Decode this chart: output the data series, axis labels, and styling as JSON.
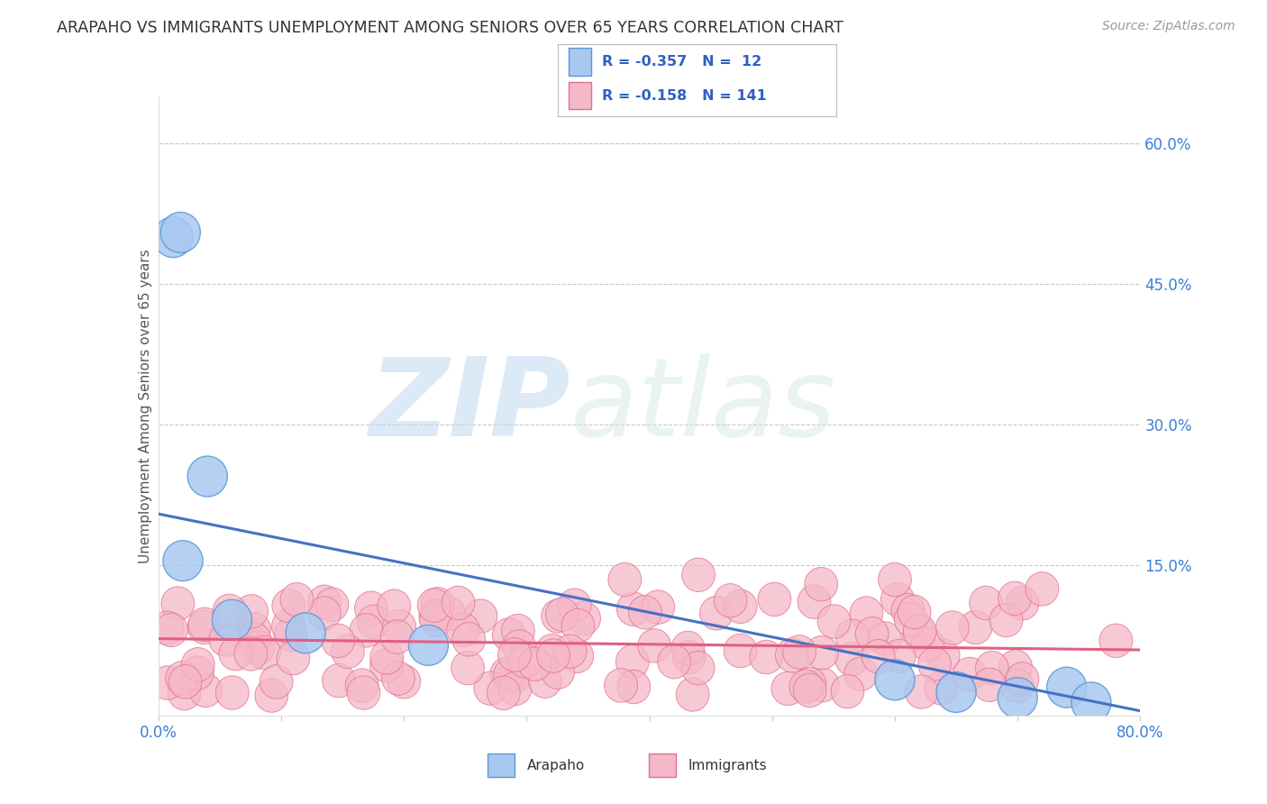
{
  "title": "ARAPAHO VS IMMIGRANTS UNEMPLOYMENT AMONG SENIORS OVER 65 YEARS CORRELATION CHART",
  "source": "Source: ZipAtlas.com",
  "ylabel": "Unemployment Among Seniors over 65 years",
  "xlim": [
    0.0,
    0.8
  ],
  "ylim": [
    -0.01,
    0.65
  ],
  "ytick_right_labels": [
    "",
    "15.0%",
    "30.0%",
    "45.0%",
    "60.0%"
  ],
  "ytick_right_values": [
    0.0,
    0.15,
    0.3,
    0.45,
    0.6
  ],
  "arapaho_color": "#a8c8f0",
  "arapaho_edge_color": "#5a9ad5",
  "immigrants_color": "#f5b8c8",
  "immigrants_edge_color": "#e07090",
  "arapaho_line_color": "#4472c4",
  "immigrants_line_color": "#e06080",
  "arapaho_R": -0.357,
  "arapaho_N": 12,
  "immigrants_R": -0.158,
  "immigrants_N": 141,
  "legend_text_color": "#3060c0",
  "watermark_zip": "ZIP",
  "watermark_atlas": "atlas",
  "bg_color": "#ffffff",
  "grid_color": "#c8c8c8",
  "ara_line_x0": 0.0,
  "ara_line_y0": 0.205,
  "ara_line_x1": 0.8,
  "ara_line_y1": -0.005,
  "imm_line_x0": 0.0,
  "imm_line_y0": 0.072,
  "imm_line_x1": 0.8,
  "imm_line_y1": 0.06
}
